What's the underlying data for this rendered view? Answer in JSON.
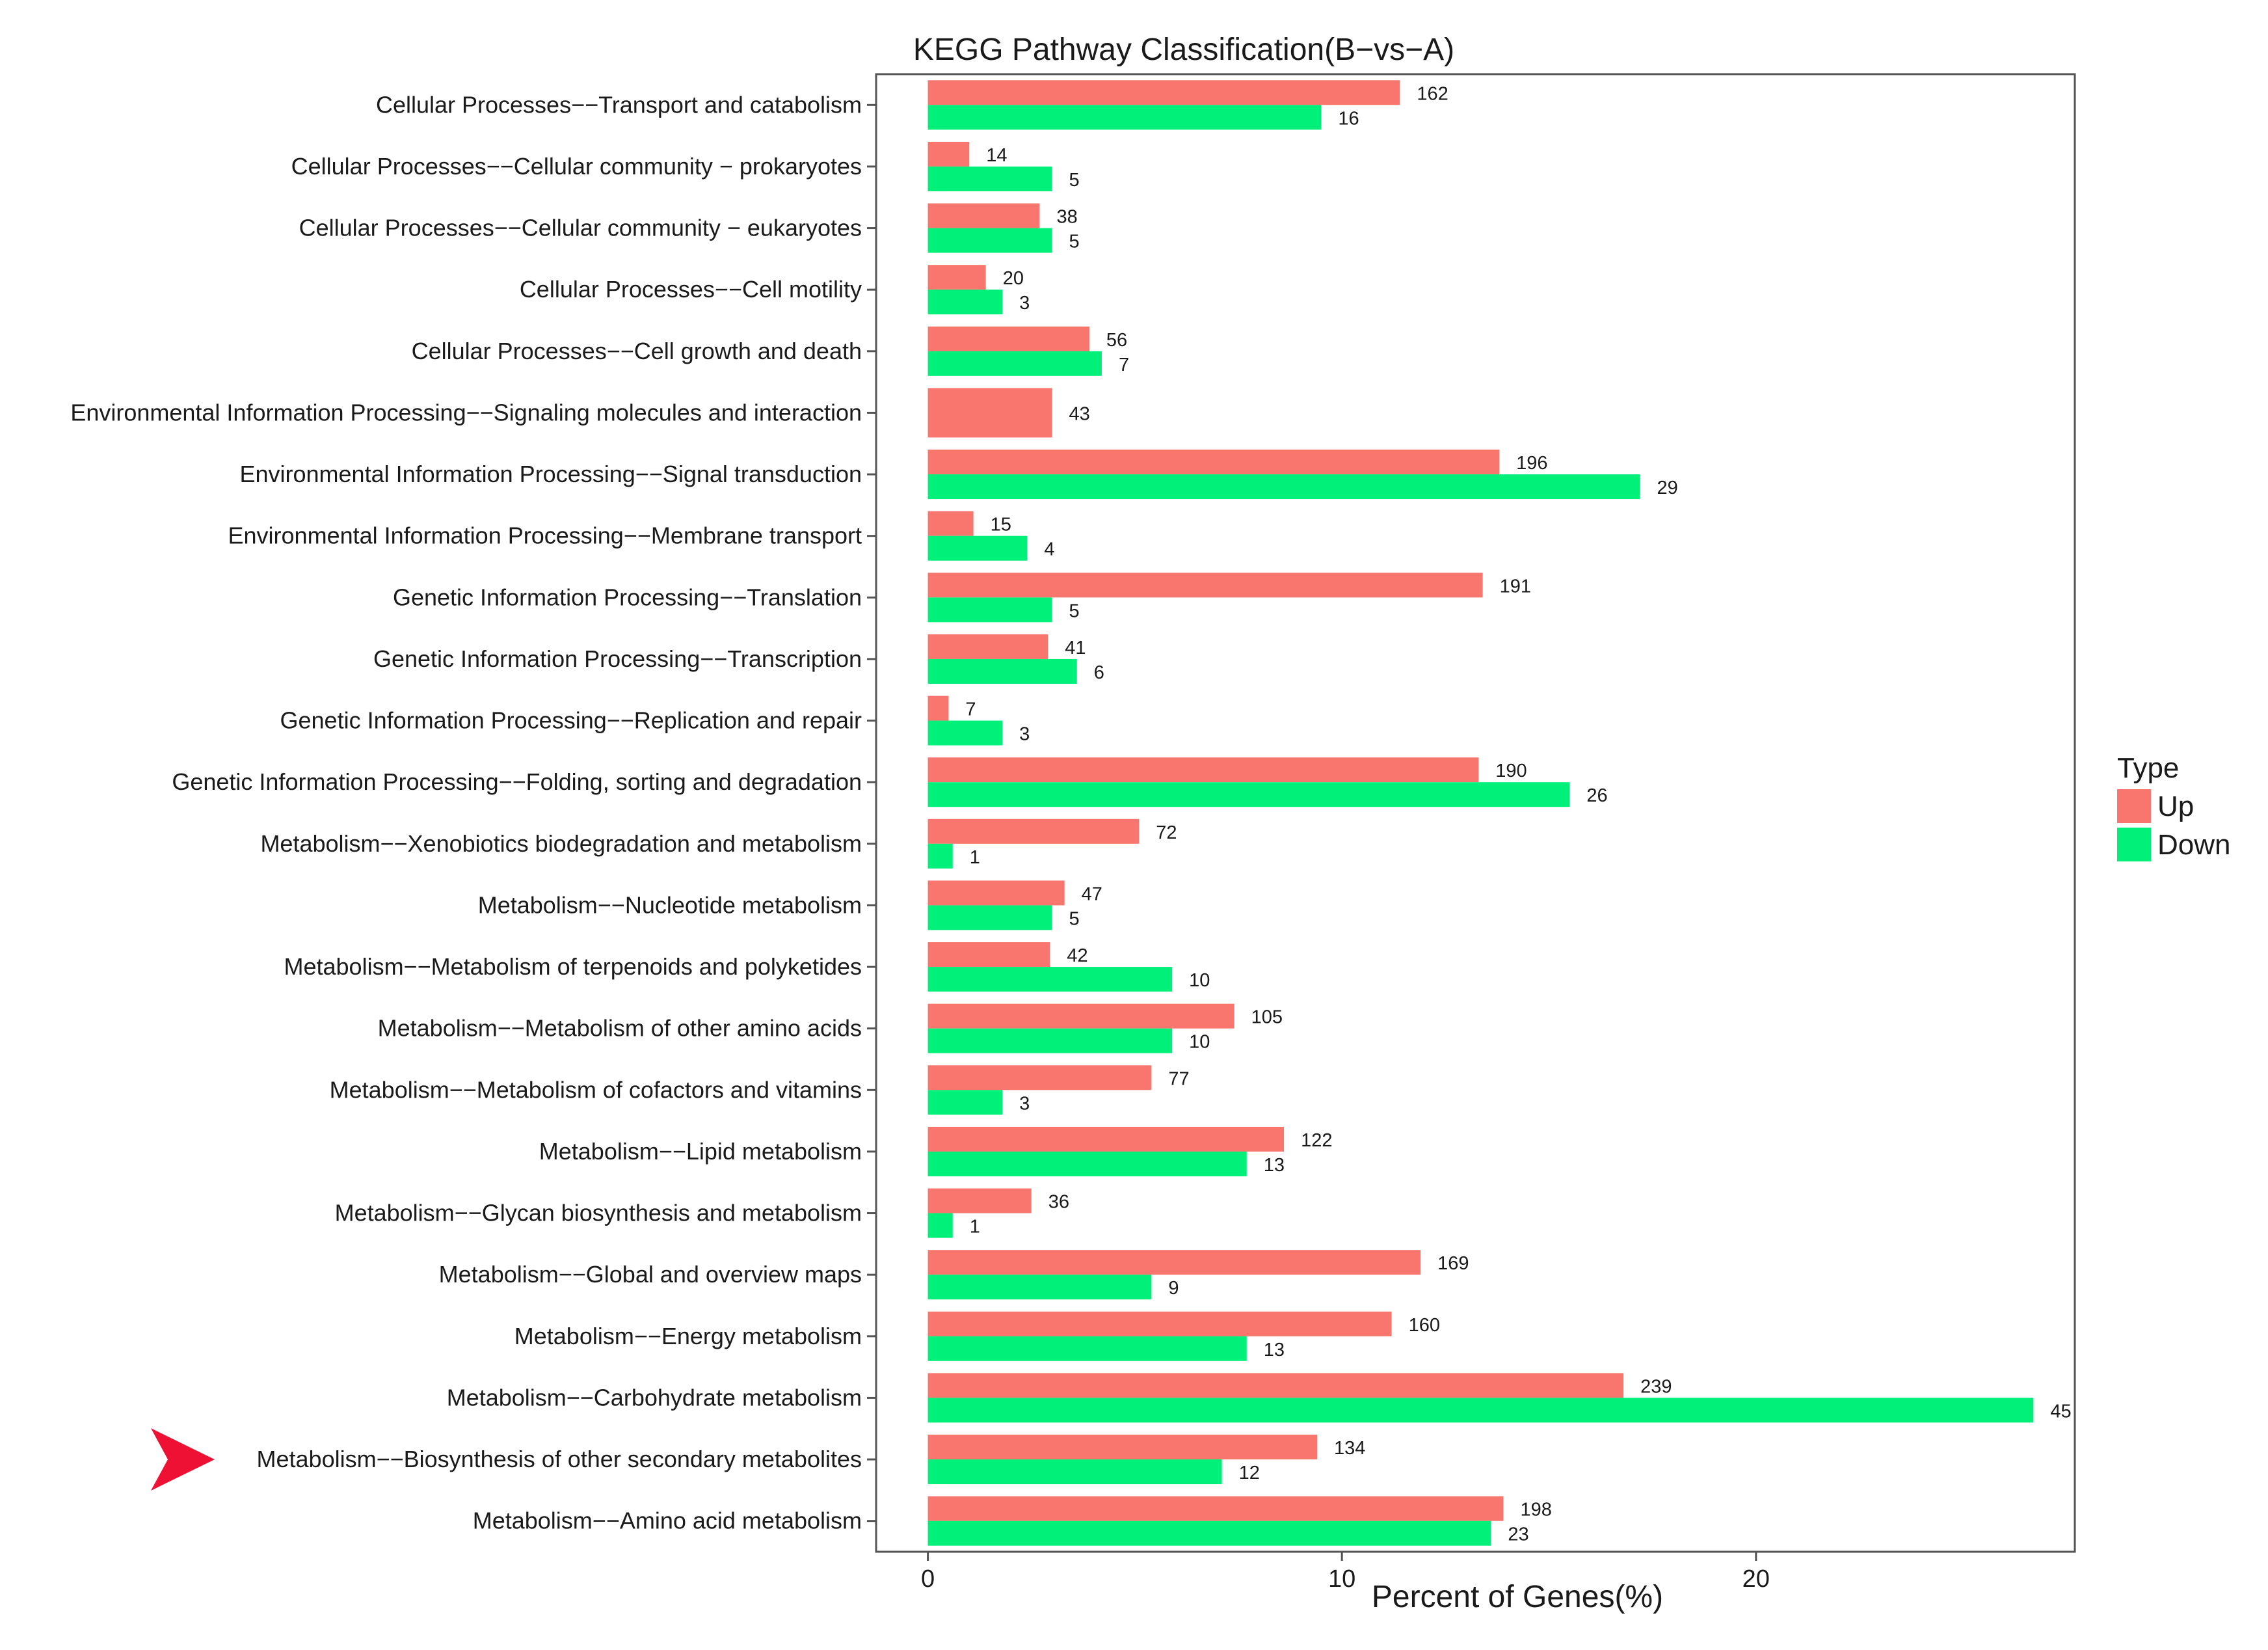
{
  "chart_data": {
    "type": "bar",
    "orientation": "horizontal",
    "title": "KEGG Pathway Classification(B−vs−A)",
    "xlabel": "Percent of Genes(%)",
    "ylabel": "",
    "xlim": [
      -1.25,
      27.7
    ],
    "xticks": [
      0,
      10,
      20
    ],
    "grid": false,
    "legend": {
      "title": "Type",
      "position": "right",
      "entries": [
        {
          "name": "Up",
          "color": "#f8766d"
        },
        {
          "name": "Down",
          "color": "#00f07a"
        }
      ]
    },
    "highlight": {
      "category_index": 22,
      "marker": "red-arrowhead",
      "color": "#ee1133"
    },
    "categories": [
      "Cellular Processes−−Transport and catabolism",
      "Cellular Processes−−Cellular community − prokaryotes",
      "Cellular Processes−−Cellular community − eukaryotes",
      "Cellular Processes−−Cell motility",
      "Cellular Processes−−Cell growth and death",
      "Environmental Information Processing−−Signaling molecules and interaction",
      "Environmental Information Processing−−Signal transduction",
      "Environmental Information Processing−−Membrane transport",
      "Genetic Information Processing−−Translation",
      "Genetic Information Processing−−Transcription",
      "Genetic Information Processing−−Replication and repair",
      "Genetic Information Processing−−Folding, sorting and degradation",
      "Metabolism−−Xenobiotics biodegradation and metabolism",
      "Metabolism−−Nucleotide metabolism",
      "Metabolism−−Metabolism of terpenoids and polyketides",
      "Metabolism−−Metabolism of other amino acids",
      "Metabolism−−Metabolism of cofactors and vitamins",
      "Metabolism−−Lipid metabolism",
      "Metabolism−−Glycan biosynthesis and metabolism",
      "Metabolism−−Global and overview maps",
      "Metabolism−−Energy metabolism",
      "Metabolism−−Carbohydrate metabolism",
      "Metabolism−−Biosynthesis of other secondary metabolites",
      "Metabolism−−Amino acid metabolism"
    ],
    "series": [
      {
        "name": "Up",
        "color": "#f8766d",
        "values": [
          11.4,
          1.0,
          2.7,
          1.4,
          3.9,
          3.0,
          13.8,
          1.1,
          13.4,
          2.9,
          0.5,
          13.3,
          5.1,
          3.3,
          2.95,
          7.4,
          5.4,
          8.6,
          2.5,
          11.9,
          11.2,
          16.8,
          9.4,
          13.9
        ],
        "labels": [
          "162",
          "14",
          "38",
          "20",
          "56",
          "43",
          "196",
          "15",
          "191",
          "41",
          "7",
          "190",
          "72",
          "47",
          "42",
          "105",
          "77",
          "122",
          "36",
          "169",
          "160",
          "239",
          "134",
          "198"
        ]
      },
      {
        "name": "Down",
        "color": "#00f07a",
        "values": [
          9.5,
          3.0,
          3.0,
          1.8,
          4.2,
          null,
          17.2,
          2.4,
          3.0,
          3.6,
          1.8,
          15.5,
          0.6,
          3.0,
          5.9,
          5.9,
          1.8,
          7.7,
          0.6,
          5.4,
          7.7,
          26.7,
          7.1,
          13.6
        ],
        "labels": [
          "16",
          "5",
          "5",
          "3",
          "7",
          "",
          "29",
          "4",
          "5",
          "6",
          "3",
          "26",
          "1",
          "5",
          "10",
          "10",
          "3",
          "13",
          "1",
          "9",
          "13",
          "45",
          "12",
          "23"
        ]
      }
    ]
  }
}
